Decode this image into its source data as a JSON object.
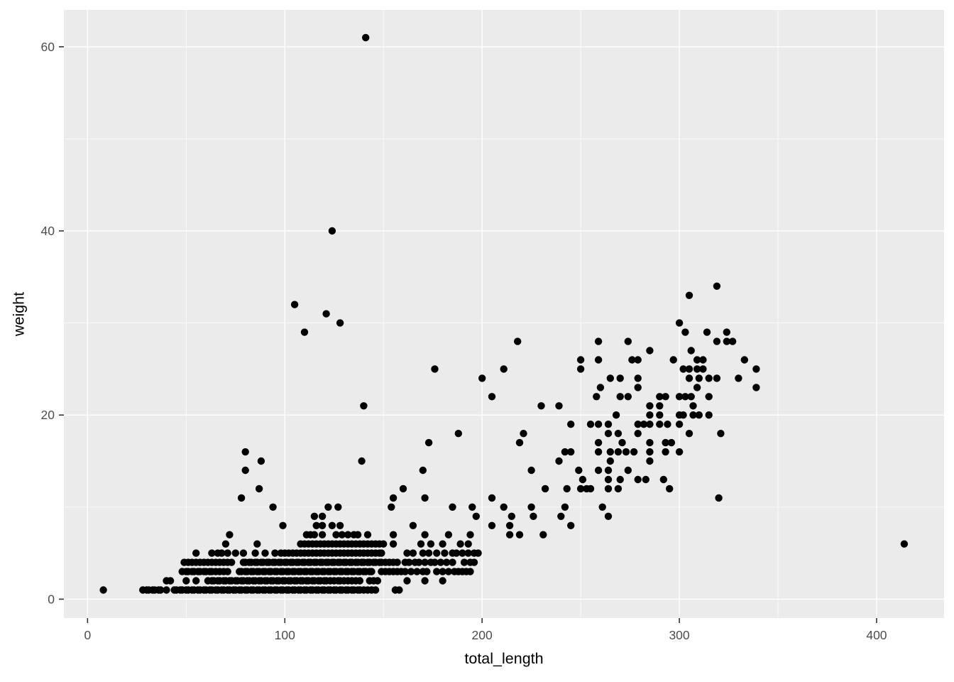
{
  "chart_data": {
    "type": "scatter",
    "title": "",
    "xlabel": "total_length",
    "ylabel": "weight",
    "x_ticks": [
      0,
      100,
      200,
      300,
      400
    ],
    "y_ticks": [
      0,
      20,
      40,
      60
    ],
    "x_minor_gridlines": [
      50,
      150,
      250,
      350
    ],
    "y_minor_gridlines": [
      10,
      30,
      50
    ],
    "xlim": [
      -12,
      434.2
    ],
    "ylim": [
      -2.05,
      64
    ],
    "grid": true,
    "legend": "none",
    "point_radius": 5.2,
    "colors": {
      "panel_bg": "#EBEBEB",
      "grid": "#FFFFFF",
      "point": "#000000",
      "tick_label": "#4D4D4D",
      "tick_mark": "#333333",
      "axis_title": "#000000"
    },
    "rows": [
      {
        "weight": 1,
        "lengths": [
          8,
          28,
          30,
          31,
          33,
          34,
          36,
          37,
          40,
          44,
          45,
          47,
          48,
          50,
          51,
          53,
          54,
          56,
          57,
          59,
          60,
          62,
          63,
          65,
          66,
          68,
          69,
          71,
          72,
          74,
          75,
          77,
          78,
          80,
          81,
          83,
          84,
          86,
          87,
          89,
          90,
          92,
          93,
          95,
          96,
          98,
          99,
          101,
          102,
          104,
          105,
          107,
          108,
          110,
          111,
          113,
          114,
          116,
          117,
          119,
          120,
          122,
          123,
          125,
          126,
          128,
          129,
          131,
          132,
          134,
          135,
          137,
          138,
          140,
          142,
          144,
          146,
          156,
          158
        ]
      },
      {
        "weight": 2,
        "lengths": [
          40,
          42,
          50,
          55,
          61,
          63,
          64,
          66,
          67,
          69,
          70,
          72,
          73,
          75,
          76,
          78,
          79,
          81,
          82,
          84,
          85,
          87,
          88,
          90,
          91,
          93,
          94,
          96,
          97,
          99,
          100,
          102,
          103,
          105,
          106,
          108,
          109,
          111,
          112,
          114,
          115,
          117,
          118,
          120,
          121,
          123,
          125,
          127,
          128,
          130,
          132,
          134,
          136,
          138,
          143,
          145,
          147,
          162,
          171,
          180
        ]
      },
      {
        "weight": 3,
        "lengths": [
          48,
          50,
          51,
          53,
          54,
          56,
          57,
          59,
          60,
          62,
          63,
          65,
          67,
          69,
          71,
          77,
          78,
          80,
          81,
          83,
          84,
          86,
          87,
          89,
          90,
          92,
          93,
          95,
          96,
          98,
          99,
          101,
          102,
          104,
          105,
          107,
          108,
          110,
          111,
          113,
          114,
          116,
          117,
          119,
          120,
          122,
          123,
          125,
          126,
          128,
          129,
          131,
          132,
          134,
          135,
          137,
          138,
          140,
          141,
          143,
          144,
          149,
          151,
          153,
          155,
          157,
          159,
          161,
          164,
          167,
          170,
          172,
          177,
          180,
          183,
          186,
          188,
          190,
          192,
          194
        ]
      },
      {
        "weight": 4,
        "lengths": [
          49,
          51,
          53,
          55,
          57,
          59,
          61,
          63,
          65,
          67,
          69,
          71,
          73,
          79,
          80,
          82,
          83,
          85,
          86,
          88,
          89,
          91,
          92,
          94,
          95,
          97,
          98,
          100,
          101,
          103,
          104,
          106,
          107,
          109,
          110,
          112,
          113,
          115,
          116,
          118,
          119,
          121,
          122,
          124,
          125,
          127,
          128,
          130,
          131,
          133,
          134,
          136,
          137,
          139,
          140,
          142,
          143,
          145,
          146,
          148,
          149,
          151,
          153,
          155,
          157,
          161,
          163,
          166,
          168,
          171,
          174,
          176,
          179,
          182,
          185,
          191,
          194,
          196
        ]
      },
      {
        "weight": 5,
        "lengths": [
          55,
          63,
          66,
          68,
          71,
          75,
          79,
          85,
          90,
          95,
          98,
          100,
          102,
          104,
          106,
          108,
          110,
          112,
          114,
          116,
          118,
          120,
          122,
          124,
          126,
          128,
          130,
          132,
          134,
          136,
          138,
          140,
          142,
          144,
          146,
          148,
          149,
          162,
          165,
          170,
          173,
          177,
          181,
          185,
          187,
          190,
          193,
          196,
          198
        ]
      },
      {
        "weight": 6,
        "lengths": [
          70,
          86,
          108,
          110,
          112,
          114,
          116,
          118,
          120,
          122,
          124,
          126,
          128,
          130,
          132,
          134,
          136,
          138,
          140,
          142,
          144,
          146,
          148,
          150,
          155,
          169,
          174,
          180,
          189,
          193,
          414
        ]
      },
      {
        "weight": 7,
        "lengths": [
          72,
          111,
          113,
          115,
          119,
          126,
          129,
          132,
          135,
          137,
          142,
          155,
          171,
          183,
          194,
          214,
          219,
          231
        ]
      },
      {
        "weight": 8,
        "lengths": [
          99,
          116,
          119,
          124,
          128,
          165,
          205,
          214,
          245
        ]
      },
      {
        "weight": 9,
        "lengths": [
          115,
          119,
          197,
          215,
          226,
          240,
          264
        ]
      },
      {
        "weight": 10,
        "lengths": [
          94,
          122,
          127,
          154,
          185,
          195,
          211,
          225,
          242,
          261
        ]
      },
      {
        "weight": 11,
        "lengths": [
          78,
          155,
          171,
          205,
          320
        ]
      },
      {
        "weight": 12,
        "lengths": [
          87,
          160,
          232,
          243,
          250,
          253,
          255,
          264,
          269,
          295
        ]
      },
      {
        "weight": 13,
        "lengths": [
          251,
          264,
          270,
          279,
          283,
          292
        ]
      },
      {
        "weight": 14,
        "lengths": [
          80,
          170,
          225,
          249,
          259,
          264,
          274
        ]
      },
      {
        "weight": 15,
        "lengths": [
          88,
          139,
          239,
          265,
          285
        ]
      },
      {
        "weight": 16,
        "lengths": [
          80,
          242,
          245,
          259,
          265,
          269,
          273,
          277,
          285,
          293,
          300
        ]
      },
      {
        "weight": 17,
        "lengths": [
          173,
          219,
          259,
          271,
          285,
          293,
          296
        ]
      },
      {
        "weight": 18,
        "lengths": [
          188,
          221,
          264,
          269,
          279,
          305,
          321
        ]
      },
      {
        "weight": 19,
        "lengths": [
          245,
          255,
          259,
          264,
          279,
          282,
          285,
          290,
          294,
          300
        ]
      },
      {
        "weight": 20,
        "lengths": [
          268,
          285,
          290,
          300,
          302,
          307,
          310,
          315
        ]
      },
      {
        "weight": 21,
        "lengths": [
          140,
          230,
          239,
          285,
          290,
          307
        ]
      },
      {
        "weight": 22,
        "lengths": [
          205,
          258,
          270,
          274,
          290,
          293,
          300,
          303,
          306,
          315
        ]
      },
      {
        "weight": 23,
        "lengths": [
          260,
          279,
          309,
          339
        ]
      },
      {
        "weight": 24,
        "lengths": [
          200,
          265,
          270,
          279,
          305,
          310,
          315,
          319,
          330
        ]
      },
      {
        "weight": 25,
        "lengths": [
          176,
          211,
          250,
          302,
          305,
          309,
          312,
          339
        ]
      },
      {
        "weight": 26,
        "lengths": [
          250,
          259,
          276,
          279,
          297,
          309,
          312,
          333
        ]
      },
      {
        "weight": 27,
        "lengths": [
          285,
          306
        ]
      },
      {
        "weight": 28,
        "lengths": [
          218,
          259,
          274,
          319,
          324,
          327
        ]
      },
      {
        "weight": 29,
        "lengths": [
          110,
          303,
          314,
          324
        ]
      },
      {
        "weight": 30,
        "lengths": [
          128,
          300
        ]
      },
      {
        "weight": 31,
        "lengths": [
          121
        ]
      },
      {
        "weight": 32,
        "lengths": [
          105
        ]
      },
      {
        "weight": 33,
        "lengths": [
          305
        ]
      },
      {
        "weight": 34,
        "lengths": [
          319
        ]
      },
      {
        "weight": 40,
        "lengths": [
          124
        ]
      },
      {
        "weight": 61,
        "lengths": [
          141
        ]
      }
    ]
  }
}
